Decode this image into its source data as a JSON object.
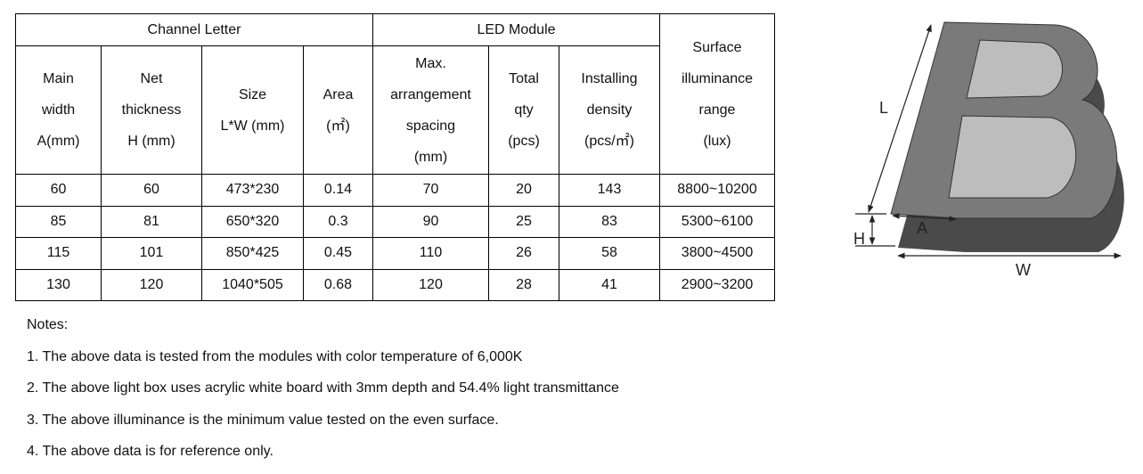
{
  "table": {
    "groups": [
      "Channel Letter",
      "LED Module",
      "Surface illuminance range"
    ],
    "surface_lines": [
      "Surface",
      "illuminance",
      "range",
      "(lux)"
    ],
    "columns": [
      [
        "Main",
        "width",
        "A(mm)"
      ],
      [
        "Net",
        "thickness",
        "H (mm)"
      ],
      [
        "Size",
        "L*W (mm)"
      ],
      [
        "Area",
        "(㎡)"
      ],
      [
        "Max.",
        "arrangement",
        "spacing",
        "(mm)"
      ],
      [
        "Total",
        "qty",
        "(pcs)"
      ],
      [
        "Installing",
        "density",
        "(pcs/㎡)"
      ]
    ],
    "rows": [
      [
        "60",
        "60",
        "473*230",
        "0.14",
        "70",
        "20",
        "143",
        "8800~10200"
      ],
      [
        "85",
        "81",
        "650*320",
        "0.3",
        "90",
        "25",
        "83",
        "5300~6100"
      ],
      [
        "115",
        "101",
        "850*425",
        "0.45",
        "110",
        "26",
        "58",
        "3800~4500"
      ],
      [
        "130",
        "120",
        "1040*505",
        "0.68",
        "120",
        "28",
        "41",
        "2900~3200"
      ]
    ]
  },
  "notes": {
    "title": "Notes:",
    "items": [
      "1. The above data is tested from the modules with color temperature of 6,000K",
      "2. The above light box uses acrylic white board with 3mm depth and 54.4% light transmittance",
      "3. The above illuminance is the minimum value tested on the even surface.",
      "4. The above data is for reference only."
    ]
  },
  "diagram": {
    "labels": [
      "L",
      "A",
      "H",
      "W"
    ]
  }
}
